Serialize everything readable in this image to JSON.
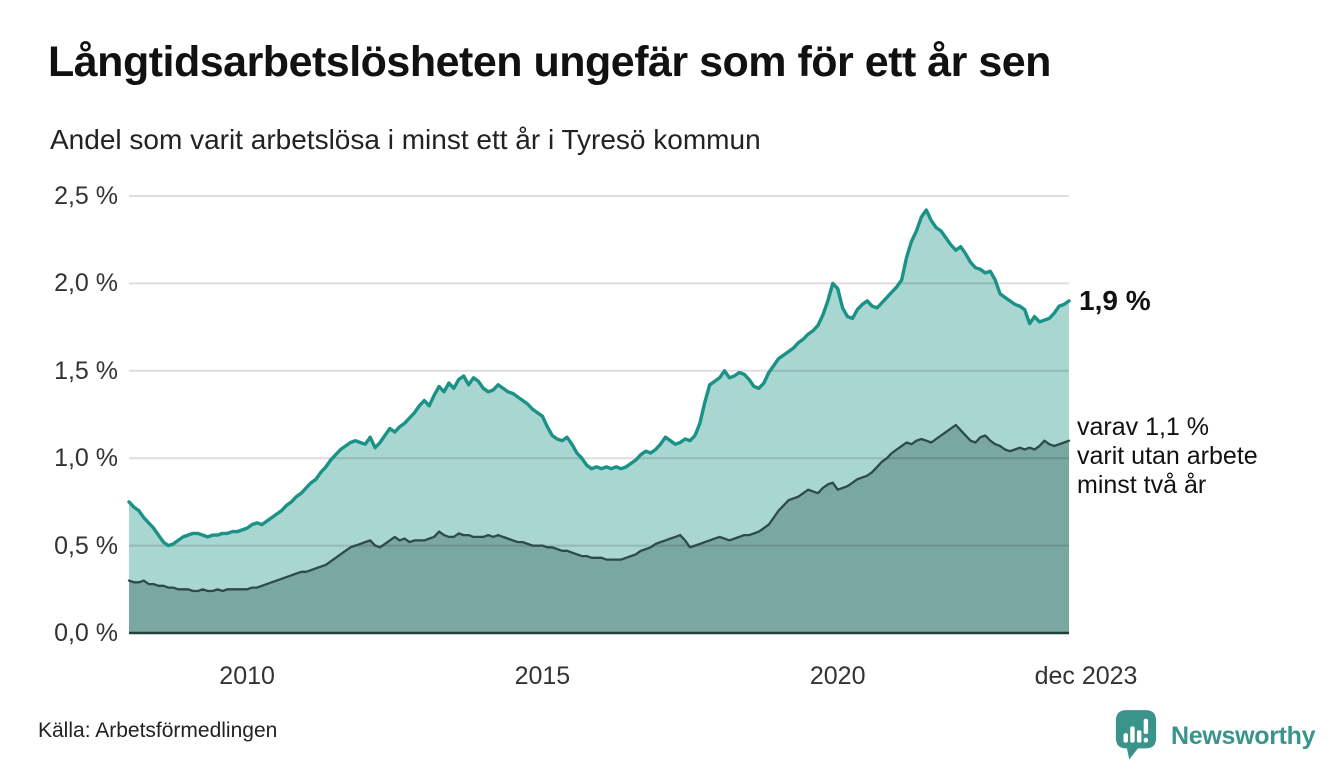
{
  "chart_data": {
    "type": "area",
    "title": "Långtidsarbetslösheten ungefär som för ett år sen",
    "subtitle": "Andel som varit arbetslösa i minst ett år i Tyresö kommun",
    "unit": "%",
    "frequency": "monthly",
    "x_start": "2008-01",
    "x_end": "2023-12",
    "ylim": [
      0,
      2.5
    ],
    "grid": "horizontal",
    "legend": "none",
    "y_ticks": [
      {
        "value": 0.0,
        "label": "0,0 %"
      },
      {
        "value": 0.5,
        "label": "0,5 %"
      },
      {
        "value": 1.0,
        "label": "1,0 %"
      },
      {
        "value": 1.5,
        "label": "1,5 %"
      },
      {
        "value": 2.0,
        "label": "2,0 %"
      },
      {
        "value": 2.5,
        "label": "2,5 %"
      }
    ],
    "x_ticks": [
      {
        "month_index": 24,
        "label": "2010",
        "dx": 0
      },
      {
        "month_index": 84,
        "label": "2015",
        "dx": 0
      },
      {
        "month_index": 144,
        "label": "2020",
        "dx": 0
      },
      {
        "month_index": 191,
        "label": "dec 2023",
        "dx": 17
      }
    ],
    "series": [
      {
        "name": "Andel arbetslösa minst ett år",
        "color": "#1b9287",
        "fill": "#a9d6d0",
        "values": [
          0.75,
          0.72,
          0.7,
          0.66,
          0.63,
          0.6,
          0.56,
          0.52,
          0.5,
          0.51,
          0.53,
          0.55,
          0.56,
          0.57,
          0.57,
          0.56,
          0.55,
          0.56,
          0.56,
          0.57,
          0.57,
          0.58,
          0.58,
          0.59,
          0.6,
          0.62,
          0.63,
          0.62,
          0.64,
          0.66,
          0.68,
          0.7,
          0.73,
          0.75,
          0.78,
          0.8,
          0.83,
          0.86,
          0.88,
          0.92,
          0.95,
          0.99,
          1.02,
          1.05,
          1.07,
          1.09,
          1.1,
          1.09,
          1.08,
          1.12,
          1.06,
          1.09,
          1.13,
          1.17,
          1.15,
          1.18,
          1.2,
          1.23,
          1.26,
          1.3,
          1.33,
          1.3,
          1.36,
          1.41,
          1.38,
          1.43,
          1.4,
          1.45,
          1.47,
          1.42,
          1.46,
          1.44,
          1.4,
          1.38,
          1.39,
          1.42,
          1.4,
          1.38,
          1.37,
          1.35,
          1.33,
          1.31,
          1.28,
          1.26,
          1.24,
          1.18,
          1.13,
          1.11,
          1.1,
          1.12,
          1.08,
          1.03,
          1.0,
          0.96,
          0.94,
          0.95,
          0.94,
          0.95,
          0.94,
          0.95,
          0.94,
          0.95,
          0.97,
          0.99,
          1.02,
          1.04,
          1.03,
          1.05,
          1.08,
          1.12,
          1.1,
          1.08,
          1.09,
          1.11,
          1.1,
          1.13,
          1.2,
          1.32,
          1.42,
          1.44,
          1.46,
          1.5,
          1.46,
          1.47,
          1.49,
          1.48,
          1.45,
          1.41,
          1.4,
          1.43,
          1.49,
          1.53,
          1.57,
          1.59,
          1.61,
          1.63,
          1.66,
          1.68,
          1.71,
          1.73,
          1.76,
          1.82,
          1.9,
          2.0,
          1.97,
          1.86,
          1.81,
          1.8,
          1.85,
          1.88,
          1.9,
          1.87,
          1.86,
          1.89,
          1.92,
          1.95,
          1.98,
          2.02,
          2.15,
          2.24,
          2.3,
          2.38,
          2.42,
          2.36,
          2.32,
          2.3,
          2.26,
          2.22,
          2.19,
          2.21,
          2.17,
          2.12,
          2.09,
          2.08,
          2.06,
          2.07,
          2.02,
          1.94,
          1.92,
          1.9,
          1.88,
          1.87,
          1.85,
          1.77,
          1.81,
          1.78,
          1.79,
          1.8,
          1.83,
          1.87,
          1.88,
          1.9
        ]
      },
      {
        "name": "Varav utan arbete minst två år",
        "color": "#2d4b47",
        "fill": "#7aa7a1",
        "values": [
          0.3,
          0.29,
          0.29,
          0.3,
          0.28,
          0.28,
          0.27,
          0.27,
          0.26,
          0.26,
          0.25,
          0.25,
          0.25,
          0.24,
          0.24,
          0.25,
          0.24,
          0.24,
          0.25,
          0.24,
          0.25,
          0.25,
          0.25,
          0.25,
          0.25,
          0.26,
          0.26,
          0.27,
          0.28,
          0.29,
          0.3,
          0.31,
          0.32,
          0.33,
          0.34,
          0.35,
          0.35,
          0.36,
          0.37,
          0.38,
          0.39,
          0.41,
          0.43,
          0.45,
          0.47,
          0.49,
          0.5,
          0.51,
          0.52,
          0.53,
          0.5,
          0.49,
          0.51,
          0.53,
          0.55,
          0.53,
          0.54,
          0.52,
          0.53,
          0.53,
          0.53,
          0.54,
          0.55,
          0.58,
          0.56,
          0.55,
          0.55,
          0.57,
          0.56,
          0.56,
          0.55,
          0.55,
          0.55,
          0.56,
          0.55,
          0.56,
          0.55,
          0.54,
          0.53,
          0.52,
          0.52,
          0.51,
          0.5,
          0.5,
          0.5,
          0.49,
          0.49,
          0.48,
          0.47,
          0.47,
          0.46,
          0.45,
          0.44,
          0.44,
          0.43,
          0.43,
          0.43,
          0.42,
          0.42,
          0.42,
          0.42,
          0.43,
          0.44,
          0.45,
          0.47,
          0.48,
          0.49,
          0.51,
          0.52,
          0.53,
          0.54,
          0.55,
          0.56,
          0.53,
          0.49,
          0.5,
          0.51,
          0.52,
          0.53,
          0.54,
          0.55,
          0.54,
          0.53,
          0.54,
          0.55,
          0.56,
          0.56,
          0.57,
          0.58,
          0.6,
          0.62,
          0.66,
          0.7,
          0.73,
          0.76,
          0.77,
          0.78,
          0.8,
          0.82,
          0.81,
          0.8,
          0.83,
          0.85,
          0.86,
          0.82,
          0.83,
          0.84,
          0.86,
          0.88,
          0.89,
          0.9,
          0.92,
          0.95,
          0.98,
          1.0,
          1.03,
          1.05,
          1.07,
          1.09,
          1.08,
          1.1,
          1.11,
          1.1,
          1.09,
          1.11,
          1.13,
          1.15,
          1.17,
          1.19,
          1.16,
          1.13,
          1.1,
          1.09,
          1.12,
          1.13,
          1.1,
          1.08,
          1.07,
          1.05,
          1.04,
          1.05,
          1.06,
          1.05,
          1.06,
          1.05,
          1.07,
          1.1,
          1.08,
          1.07,
          1.08,
          1.09,
          1.1
        ]
      }
    ],
    "annotations": {
      "latest_total": {
        "text": "1,9 %",
        "value": 1.9
      },
      "latest_two_year": {
        "lines": [
          "varav 1,1 %",
          "varit utan arbete",
          "minst två år"
        ],
        "value": 1.1
      }
    },
    "colors": {
      "grid": "rgba(0,0,0,0.13)",
      "baseline": "#20403c",
      "text": "#111111",
      "tick_text": "#333333"
    }
  },
  "source": {
    "label": "Källa: Arbetsförmedlingen"
  },
  "branding": {
    "name": "Newsworthy",
    "color": "#3a948b"
  }
}
